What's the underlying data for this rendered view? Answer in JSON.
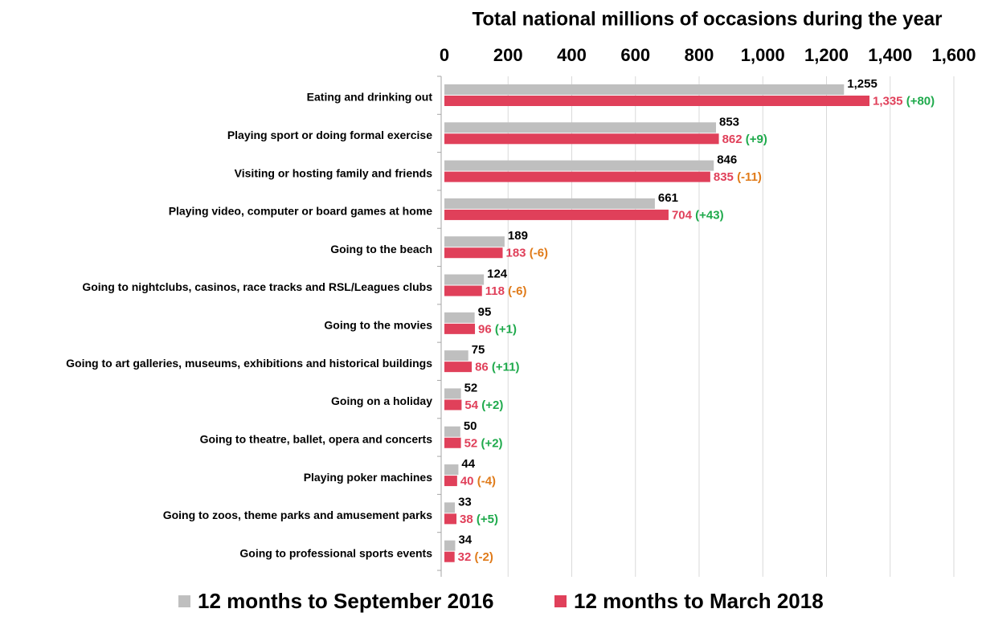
{
  "chart_data": {
    "type": "hbar",
    "title": "Total national millions of occasions during the year",
    "categories": [
      "Eating and drinking out",
      "Playing sport or doing formal exercise",
      "Visiting or hosting family and friends",
      "Playing video, computer or board games at home",
      "Going to the beach",
      "Going to nightclubs, casinos, race tracks and RSL/Leagues clubs",
      "Going to the movies",
      "Going to art galleries, museums, exhibitions and historical buildings",
      "Going on a holiday",
      "Going to theatre, ballet, opera and concerts",
      "Playing poker machines",
      "Going to zoos, theme parks and amusement parks",
      "Going to professional sports events"
    ],
    "series": [
      {
        "name": "12 months to September 2016",
        "color": "#bfbfbf",
        "label_color": "#000000",
        "values": [
          1255,
          853,
          846,
          661,
          189,
          124,
          95,
          75,
          52,
          50,
          44,
          33,
          34
        ],
        "value_labels": [
          "1,255",
          "853",
          "846",
          "661",
          "189",
          "124",
          "95",
          "75",
          "52",
          "50",
          "44",
          "33",
          "34"
        ]
      },
      {
        "name": "12 months to March 2018",
        "color": "#e0405a",
        "label_color": "#e0405a",
        "values": [
          1335,
          862,
          835,
          704,
          183,
          118,
          96,
          86,
          54,
          52,
          40,
          38,
          32
        ],
        "value_labels": [
          "1,335",
          "862",
          "835",
          "704",
          "183",
          "118",
          "96",
          "86",
          "54",
          "52",
          "40",
          "38",
          "32"
        ]
      }
    ],
    "changes": [
      {
        "value": 80,
        "label": "(+80)"
      },
      {
        "value": 9,
        "label": "(+9)"
      },
      {
        "value": -11,
        "label": "(-11)"
      },
      {
        "value": 43,
        "label": "(+43)"
      },
      {
        "value": -6,
        "label": "(-6)"
      },
      {
        "value": -6,
        "label": "(-6)"
      },
      {
        "value": 1,
        "label": "(+1)"
      },
      {
        "value": 11,
        "label": "(+11)"
      },
      {
        "value": 2,
        "label": "(+2)"
      },
      {
        "value": 2,
        "label": "(+2)"
      },
      {
        "value": -4,
        "label": "(-4)"
      },
      {
        "value": 5,
        "label": "(+5)"
      },
      {
        "value": -2,
        "label": "(-2)"
      }
    ],
    "positive_color": "#1faa4c",
    "negative_color": "#e07b1a",
    "xlim": [
      0,
      1600
    ],
    "xticks": [
      0,
      200,
      400,
      600,
      800,
      {
        "value": 1000,
        "label": "1,000"
      },
      {
        "value": 1200,
        "label": "1,200"
      },
      {
        "value": 1400,
        "label": "1,400"
      },
      {
        "value": 1600,
        "label": "1,600"
      }
    ],
    "grid": true,
    "legend": "bottom"
  }
}
